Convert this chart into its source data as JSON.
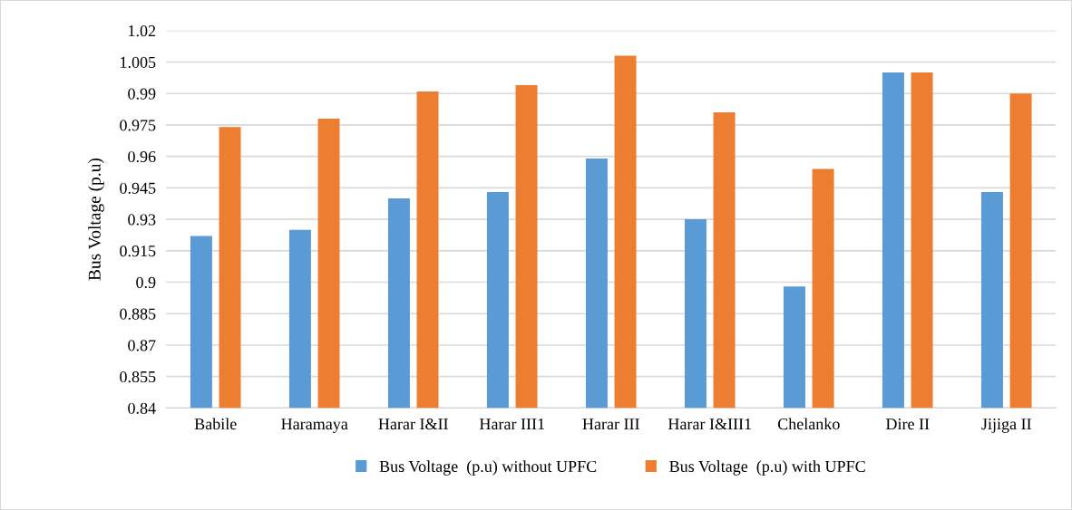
{
  "chart_data": {
    "type": "bar",
    "ylabel": "Bus Voltage (p.u)",
    "categories": [
      "Babile",
      "Haramaya",
      "Harar I&II",
      "Harar III1",
      "Harar III",
      "Harar I&III1",
      "Chelanko",
      "Dire II",
      "Jijiga II"
    ],
    "series": [
      {
        "name": "Bus Voltage  (p.u) without UPFC",
        "color": "#5b9bd5",
        "values": [
          0.922,
          0.925,
          0.94,
          0.943,
          0.959,
          0.93,
          0.898,
          1.0,
          0.943
        ]
      },
      {
        "name": "Bus Voltage  (p.u) with UPFC",
        "color": "#ed7d31",
        "values": [
          0.974,
          0.978,
          0.991,
          0.994,
          1.008,
          0.981,
          0.954,
          1.0,
          0.99
        ]
      }
    ],
    "ylim": [
      0.84,
      1.02
    ],
    "yticks": [
      0.84,
      0.855,
      0.87,
      0.885,
      0.9,
      0.915,
      0.93,
      0.945,
      0.96,
      0.975,
      0.99,
      1.005,
      1.02
    ],
    "grid": "y",
    "legend": "bottom"
  }
}
